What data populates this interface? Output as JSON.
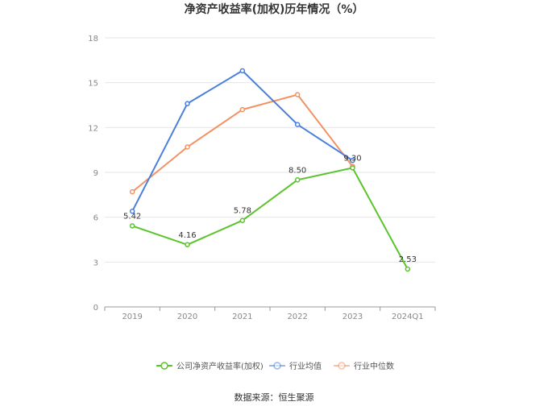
{
  "chart_data": {
    "type": "line",
    "title": "净资产收益率(加权)历年情况（%）",
    "categories": [
      "2019",
      "2020",
      "2021",
      "2022",
      "2023",
      "2024Q1"
    ],
    "ylim": [
      0,
      18
    ],
    "yticks": [
      "0",
      "3",
      "6",
      "9",
      "12",
      "15",
      "18"
    ],
    "grid": true,
    "legend_position": "bottom",
    "series": [
      {
        "name": "公司净资产收益率(加权)",
        "color": "#5ac42c",
        "values": [
          5.42,
          4.16,
          5.78,
          8.5,
          9.3,
          2.53
        ],
        "labels": [
          "5.42",
          "4.16",
          "5.78",
          "8.50",
          "9.30",
          "2.53"
        ]
      },
      {
        "name": "行业均值",
        "color": "#4a7fdc",
        "values": [
          6.4,
          13.6,
          15.8,
          12.2,
          9.8,
          null
        ]
      },
      {
        "name": "行业中位数",
        "color": "#f29263",
        "values": [
          7.7,
          10.7,
          13.2,
          14.2,
          9.4,
          null
        ]
      }
    ]
  },
  "source": "数据来源：恒生聚源"
}
